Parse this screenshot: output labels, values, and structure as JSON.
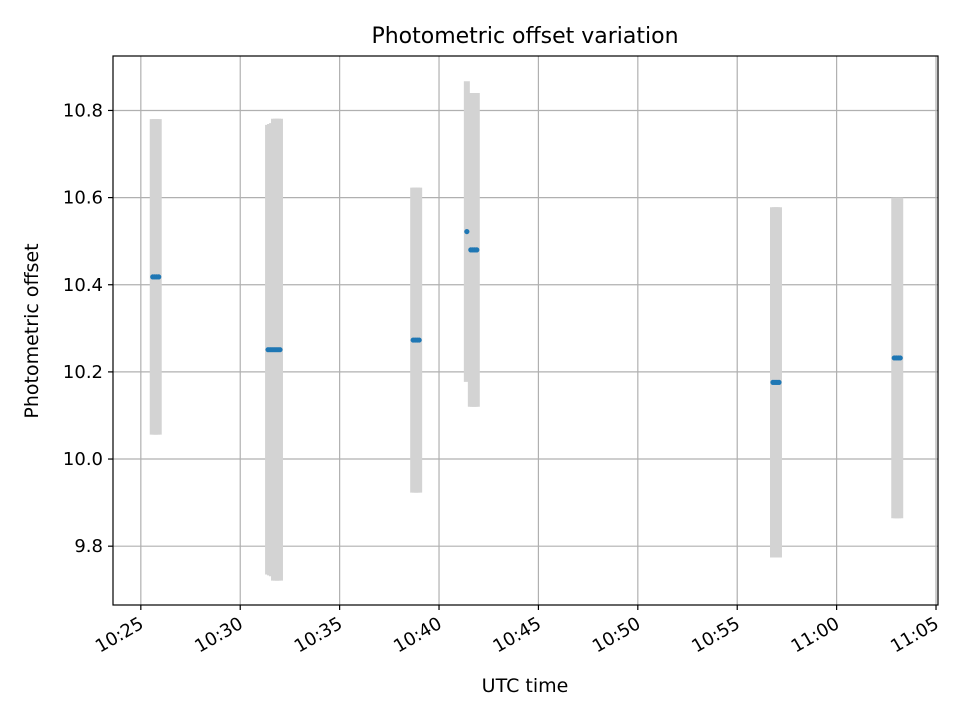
{
  "chart_data": {
    "type": "scatter",
    "title": "Photometric offset variation",
    "xlabel": "UTC time",
    "ylabel": "Photometric offset",
    "x_unit": "minutes",
    "xlim": [
      "10:23:36",
      "11:05:06"
    ],
    "ylim": [
      9.665,
      10.925
    ],
    "grid": true,
    "colors": {
      "points": "#1f77b4",
      "errorbars": "#d3d3d3",
      "grid": "#b0b0b0"
    },
    "x_ticks": [
      "10:25",
      "10:30",
      "10:35",
      "10:40",
      "10:45",
      "10:50",
      "10:55",
      "11:00",
      "11:05"
    ],
    "y_ticks": [
      "9.8",
      "10.0",
      "10.2",
      "10.4",
      "10.6",
      "10.8"
    ],
    "series": [
      {
        "points": [
          {
            "x": "10:25:36",
            "y": 10.418,
            "err": 0.362
          },
          {
            "x": "10:25:42",
            "y": 10.418,
            "err": 0.362
          },
          {
            "x": "10:25:48",
            "y": 10.418,
            "err": 0.362
          },
          {
            "x": "10:25:54",
            "y": 10.418,
            "err": 0.362
          },
          {
            "x": "10:31:24",
            "y": 10.251,
            "err": 0.516
          },
          {
            "x": "10:31:30",
            "y": 10.251,
            "err": 0.518
          },
          {
            "x": "10:31:36",
            "y": 10.251,
            "err": 0.52
          },
          {
            "x": "10:31:42",
            "y": 10.251,
            "err": 0.53
          },
          {
            "x": "10:31:48",
            "y": 10.251,
            "err": 0.53
          },
          {
            "x": "10:31:54",
            "y": 10.251,
            "err": 0.53
          },
          {
            "x": "10:32:00",
            "y": 10.251,
            "err": 0.53
          },
          {
            "x": "10:38:42",
            "y": 10.273,
            "err": 0.35
          },
          {
            "x": "10:38:48",
            "y": 10.273,
            "err": 0.35
          },
          {
            "x": "10:38:54",
            "y": 10.273,
            "err": 0.35
          },
          {
            "x": "10:39:00",
            "y": 10.273,
            "err": 0.35
          },
          {
            "x": "10:41:24",
            "y": 10.522,
            "err": 0.345
          },
          {
            "x": "10:41:36",
            "y": 10.48,
            "err": 0.36
          },
          {
            "x": "10:41:42",
            "y": 10.48,
            "err": 0.36
          },
          {
            "x": "10:41:48",
            "y": 10.48,
            "err": 0.36
          },
          {
            "x": "10:41:54",
            "y": 10.48,
            "err": 0.36
          },
          {
            "x": "10:56:48",
            "y": 10.176,
            "err": 0.402
          },
          {
            "x": "10:56:54",
            "y": 10.176,
            "err": 0.402
          },
          {
            "x": "10:57:00",
            "y": 10.176,
            "err": 0.402
          },
          {
            "x": "10:57:06",
            "y": 10.176,
            "err": 0.402
          },
          {
            "x": "11:02:54",
            "y": 10.232,
            "err": 0.368
          },
          {
            "x": "11:03:00",
            "y": 10.232,
            "err": 0.368
          },
          {
            "x": "11:03:06",
            "y": 10.232,
            "err": 0.368
          },
          {
            "x": "11:03:12",
            "y": 10.232,
            "err": 0.368
          }
        ]
      }
    ]
  }
}
